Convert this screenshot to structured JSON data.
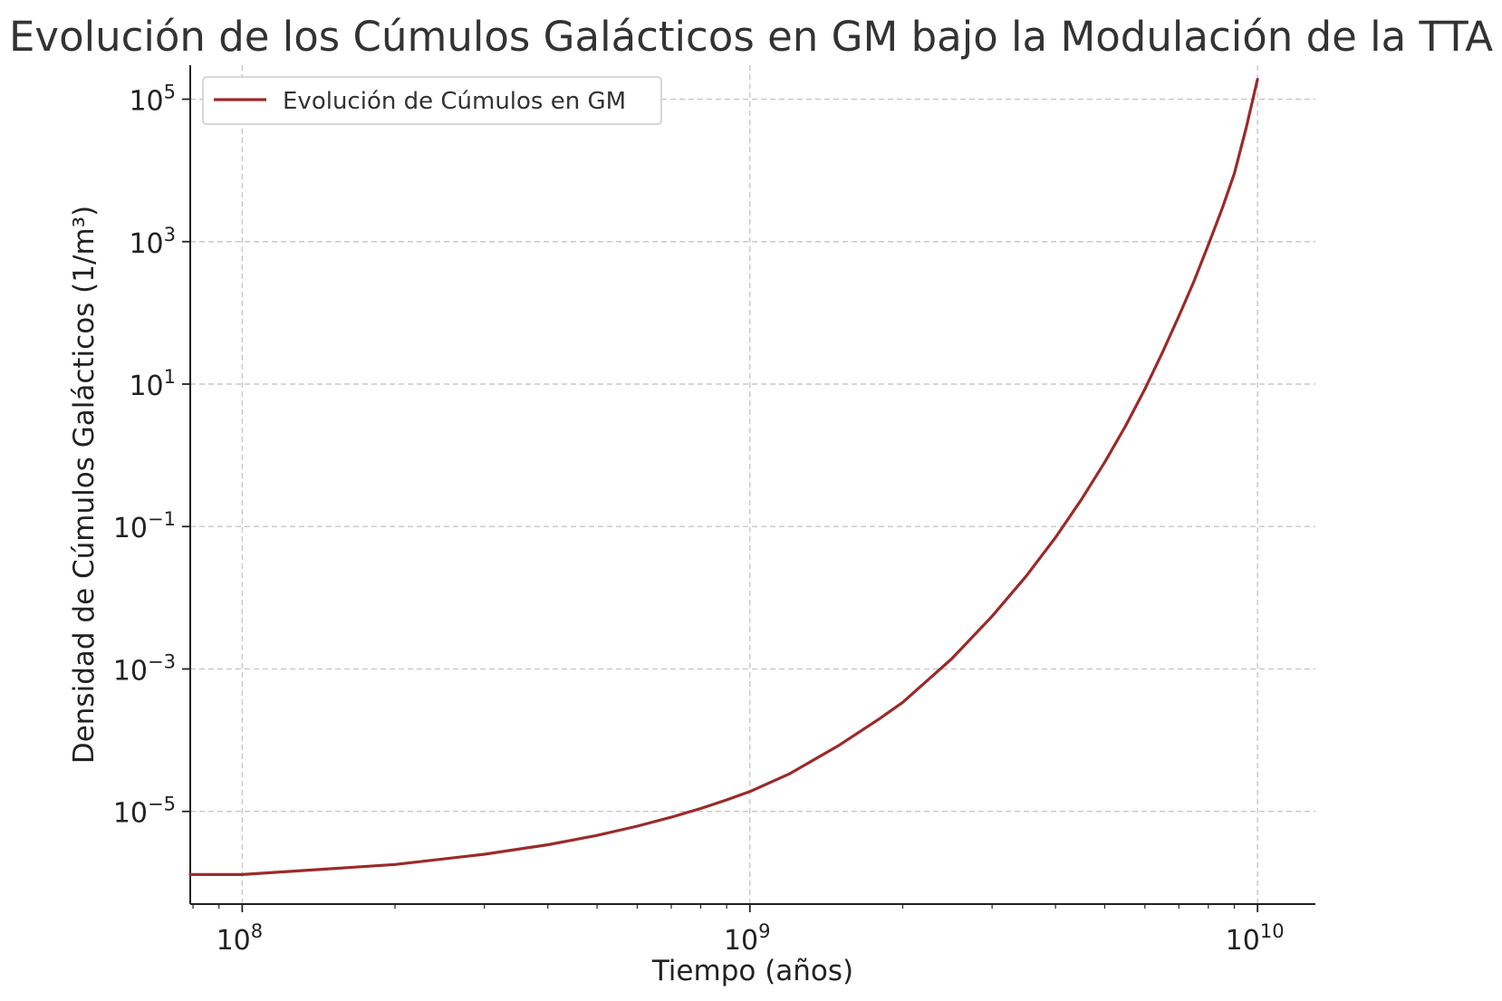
{
  "chart_data": {
    "type": "line",
    "title": "Evolución de los Cúmulos Galácticos en GM bajo la Modulación de la TTA",
    "xlabel": "Tiempo (años)",
    "ylabel": "Densidad de Cúmulos Galácticos (1/m³)",
    "xscale": "log",
    "yscale": "log",
    "xlim": [
      79000000,
      13000000000
    ],
    "ylim": [
      5e-07,
      300000
    ],
    "x_ticks": [
      {
        "value": 100000000,
        "base": "10",
        "exp": "8"
      },
      {
        "value": 1000000000,
        "base": "10",
        "exp": "9"
      },
      {
        "value": 10000000000,
        "base": "10",
        "exp": "10"
      }
    ],
    "y_ticks": [
      {
        "value": 1e-05,
        "base": "10",
        "exp": "−5"
      },
      {
        "value": 0.001,
        "base": "10",
        "exp": "−3"
      },
      {
        "value": 0.1,
        "base": "10",
        "exp": "−1"
      },
      {
        "value": 10,
        "base": "10",
        "exp": "1"
      },
      {
        "value": 1000,
        "base": "10",
        "exp": "3"
      },
      {
        "value": 100000,
        "base": "10",
        "exp": "5"
      }
    ],
    "grid": true,
    "legend_position": "upper-left",
    "series": [
      {
        "name": "Evolución de Cúmulos en GM",
        "color": "#9b2a2a",
        "x": [
          79000000,
          100000000,
          200000000,
          300000000,
          400000000,
          500000000,
          600000000,
          700000000,
          800000000,
          900000000,
          1000000000,
          1200000000,
          1500000000,
          1800000000,
          2000000000,
          2500000000,
          3000000000,
          3500000000,
          4000000000,
          4500000000,
          5000000000,
          5500000000,
          6000000000,
          6500000000,
          7000000000,
          7500000000,
          8000000000,
          8500000000,
          9000000000,
          9500000000,
          10000000000
        ],
        "y": [
          1.3e-06,
          1.3e-06,
          1.8e-06,
          2.5e-06,
          3.4e-06,
          4.6e-06,
          6.2e-06,
          8.3e-06,
          1.1e-05,
          1.45e-05,
          1.9e-05,
          3.4e-05,
          8.5e-05,
          0.0002,
          0.00034,
          0.0014,
          0.0055,
          0.02,
          0.07,
          0.24,
          0.8,
          2.6,
          8.5,
          28,
          90,
          280,
          900,
          2800,
          9000,
          40000,
          190000
        ]
      }
    ]
  }
}
